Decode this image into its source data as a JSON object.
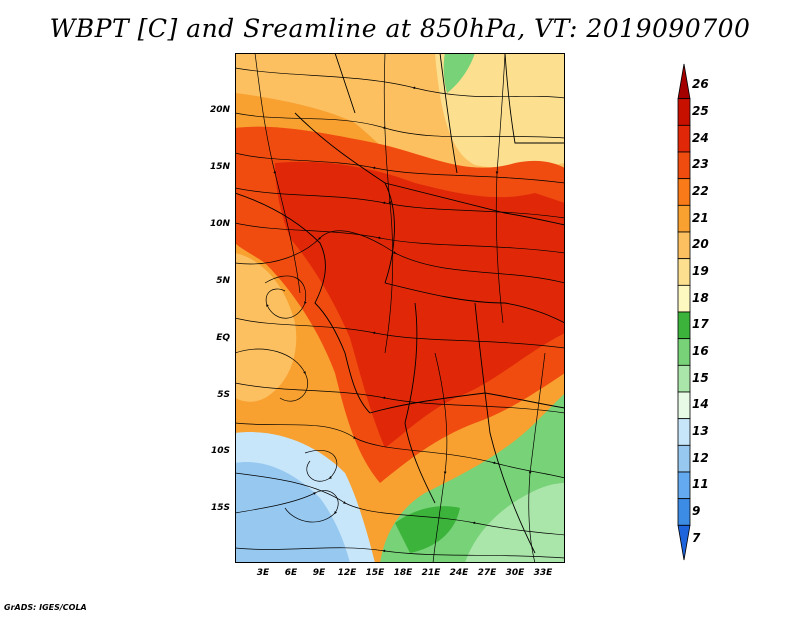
{
  "title": "WBPT [C] and Sreamline at 850hPa, VT: 2019090700",
  "footer": "GrADS: IGES/COLA",
  "map": {
    "variable": "WBPT",
    "unit": "C",
    "level": "850hPa",
    "valid_time": "2019090700",
    "lon_range": [
      0,
      36
    ],
    "lat_range": [
      -19,
      24
    ],
    "lat_ticks": [
      {
        "value": 20,
        "label": "20N"
      },
      {
        "value": 15,
        "label": "15N"
      },
      {
        "value": 10,
        "label": "10N"
      },
      {
        "value": 5,
        "label": "5N"
      },
      {
        "value": 0,
        "label": "EQ"
      },
      {
        "value": -5,
        "label": "5S"
      },
      {
        "value": -10,
        "label": "10S"
      },
      {
        "value": -15,
        "label": "15S"
      }
    ],
    "lon_ticks": [
      {
        "value": 3,
        "label": "3E"
      },
      {
        "value": 6,
        "label": "6E"
      },
      {
        "value": 9,
        "label": "9E"
      },
      {
        "value": 12,
        "label": "12E"
      },
      {
        "value": 15,
        "label": "15E"
      },
      {
        "value": 18,
        "label": "18E"
      },
      {
        "value": 21,
        "label": "21E"
      },
      {
        "value": 24,
        "label": "24E"
      },
      {
        "value": 27,
        "label": "27E"
      },
      {
        "value": 30,
        "label": "30E"
      },
      {
        "value": 33,
        "label": "33E"
      }
    ]
  },
  "colorbar": {
    "levels": [
      "26",
      "25",
      "24",
      "23",
      "22",
      "21",
      "20",
      "19",
      "18",
      "17",
      "16",
      "15",
      "14",
      "13",
      "12",
      "11",
      "9",
      "7"
    ],
    "colors": [
      "#a50000",
      "#c81000",
      "#e02808",
      "#f04c10",
      "#f87a18",
      "#f8a030",
      "#fcc060",
      "#fce090",
      "#fcf8c0",
      "#3cb43c",
      "#78d278",
      "#aae6aa",
      "#e6fae6",
      "#c8e6fa",
      "#96c8f0",
      "#64aaf0",
      "#3c8ce6",
      "#1e64dc"
    ]
  }
}
